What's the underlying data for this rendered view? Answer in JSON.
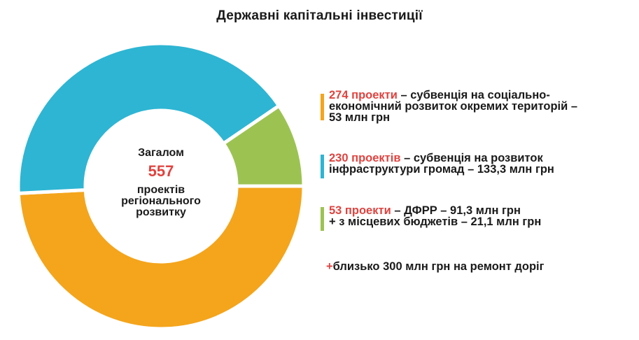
{
  "chart_data": {
    "type": "pie",
    "title": "Державні капітальні інвестиції",
    "categories": [
      "274 проекти",
      "230 проектів",
      "53 проекти"
    ],
    "values": [
      274,
      230,
      53
    ],
    "colors": [
      "#f4a51c",
      "#2eb5d3",
      "#9cc352"
    ],
    "hole": true,
    "legend": "right"
  },
  "center": {
    "label": "Загалом",
    "total": "557",
    "desc_line1": "проектів",
    "desc_line2": "регіонального",
    "desc_line3": "розвитку"
  },
  "legend": [
    {
      "color": "#f4a51c",
      "highlight": "274  проекти",
      "rest_line1": " – субвенція на соціально-",
      "line2": "економічний розвиток окремих територій –",
      "line3": "53 млн грн"
    },
    {
      "color": "#2eb5d3",
      "highlight": "230 проектів",
      "rest_line1": " – субвенція на розвиток",
      "line2": "інфраструктури громад – 133,3 млн грн",
      "line3": ""
    },
    {
      "color": "#9cc352",
      "highlight": "53 проекти",
      "rest_line1": " – ДФРР – 91,3 млн грн",
      "line2": "+ з місцевих бюджетів – 21,1 млн грн",
      "line3": ""
    }
  ],
  "extra": {
    "plus": "+",
    "text": "близько 300 млн грн на ремонт доріг"
  }
}
